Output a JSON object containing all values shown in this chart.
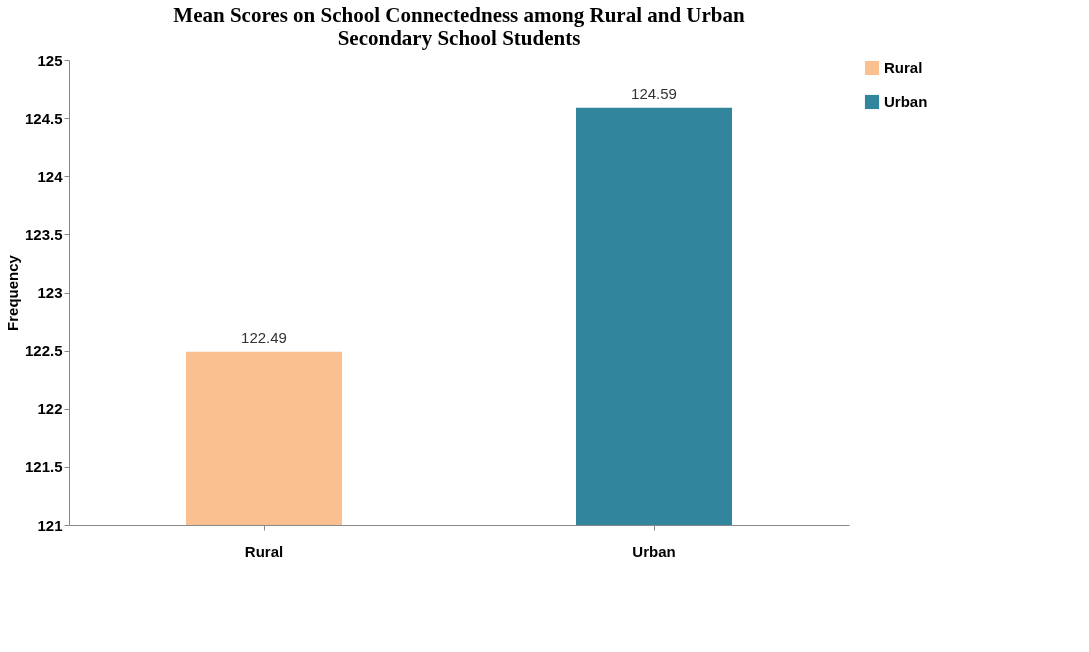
{
  "chart_data": {
    "type": "bar",
    "title": "Mean Scores on School Connectedness among Rural and Urban\nSecondary School Students",
    "ylabel": "Frequency",
    "categories": [
      "Rural",
      "Urban"
    ],
    "series": [
      {
        "name": "Rural",
        "color": "#fac090",
        "values": [
          122.49,
          null
        ]
      },
      {
        "name": "Urban",
        "color": "#31859c",
        "values": [
          null,
          124.59
        ]
      }
    ],
    "ylim": [
      121,
      125
    ],
    "yticks": [
      121,
      121.5,
      122,
      122.5,
      123,
      123.5,
      124,
      124.5,
      125
    ],
    "grid": false,
    "legend": "right",
    "data_labels": true
  }
}
